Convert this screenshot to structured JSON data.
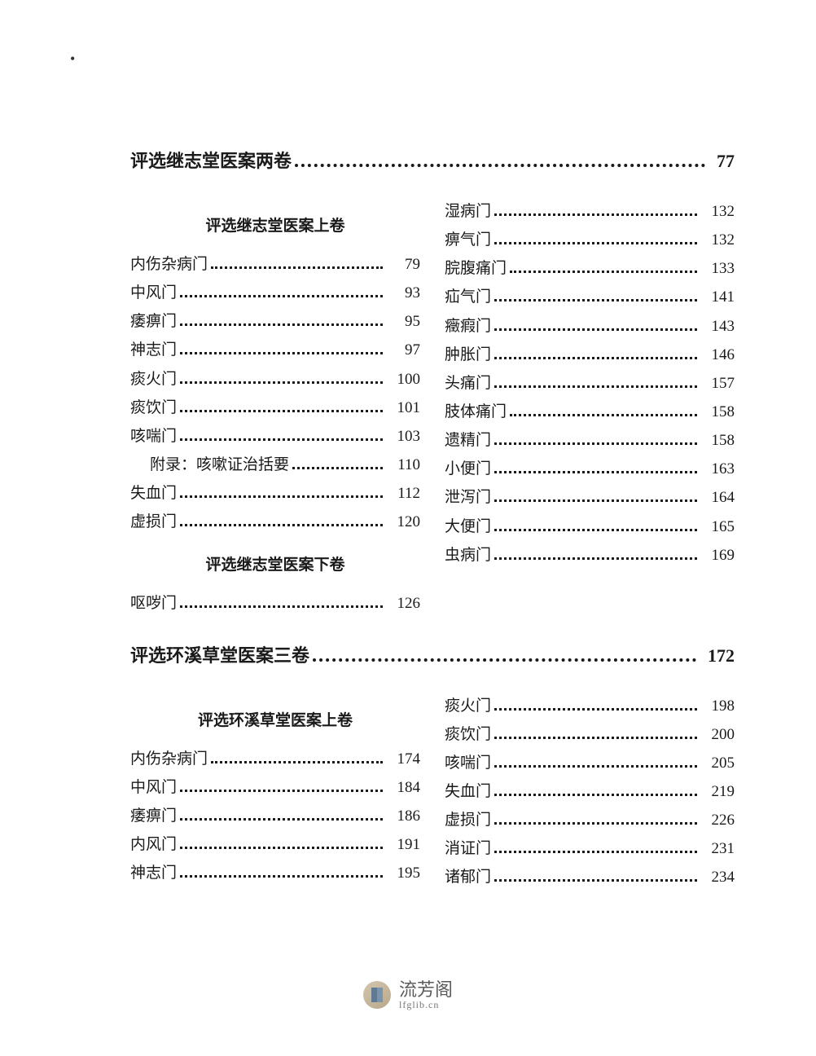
{
  "tick": "•",
  "watermark": {
    "cn": "流芳阁",
    "en": "lfglib.cn"
  },
  "sections": [
    {
      "heading": {
        "title": "评选继志堂医案两卷",
        "page": "77"
      },
      "leftItems": [
        {
          "type": "sub",
          "title": "评选继志堂医案上卷"
        },
        {
          "type": "entry",
          "title": "内伤杂病门",
          "page": "79"
        },
        {
          "type": "entry",
          "title": "中风门",
          "page": "93"
        },
        {
          "type": "entry",
          "title": "痿痹门",
          "page": "95"
        },
        {
          "type": "entry",
          "title": "神志门",
          "page": "97"
        },
        {
          "type": "entry",
          "title": "痰火门",
          "page": "100"
        },
        {
          "type": "entry",
          "title": "痰饮门",
          "page": "101"
        },
        {
          "type": "entry",
          "title": "咳喘门",
          "page": "103"
        },
        {
          "type": "entry",
          "title": "附录：咳嗽证治括要",
          "page": "110",
          "indent": true
        },
        {
          "type": "entry",
          "title": "失血门",
          "page": "112"
        },
        {
          "type": "entry",
          "title": "虚损门",
          "page": "120"
        },
        {
          "type": "sub",
          "title": "评选继志堂医案下卷"
        },
        {
          "type": "entry",
          "title": "呕哕门",
          "page": "126"
        }
      ],
      "rightItems": [
        {
          "type": "entry",
          "title": "湿病门",
          "page": "132"
        },
        {
          "type": "entry",
          "title": "痹气门",
          "page": "132"
        },
        {
          "type": "entry",
          "title": "脘腹痛门",
          "page": "133"
        },
        {
          "type": "entry",
          "title": "疝气门",
          "page": "141"
        },
        {
          "type": "entry",
          "title": "癥瘕门",
          "page": "143"
        },
        {
          "type": "entry",
          "title": "肿胀门",
          "page": "146"
        },
        {
          "type": "entry",
          "title": "头痛门",
          "page": "157"
        },
        {
          "type": "entry",
          "title": "肢体痛门",
          "page": "158"
        },
        {
          "type": "entry",
          "title": "遗精门",
          "page": "158"
        },
        {
          "type": "entry",
          "title": "小便门",
          "page": "163"
        },
        {
          "type": "entry",
          "title": "泄泻门",
          "page": "164"
        },
        {
          "type": "entry",
          "title": "大便门",
          "page": "165"
        },
        {
          "type": "entry",
          "title": "虫病门",
          "page": "169"
        }
      ]
    },
    {
      "heading": {
        "title": "评选环溪草堂医案三卷",
        "page": "172"
      },
      "leftItems": [
        {
          "type": "sub",
          "title": "评选环溪草堂医案上卷"
        },
        {
          "type": "entry",
          "title": "内伤杂病门",
          "page": "174"
        },
        {
          "type": "entry",
          "title": "中风门",
          "page": "184"
        },
        {
          "type": "entry",
          "title": "痿痹门",
          "page": "186"
        },
        {
          "type": "entry",
          "title": "内风门",
          "page": "191"
        },
        {
          "type": "entry",
          "title": "神志门",
          "page": "195"
        }
      ],
      "rightItems": [
        {
          "type": "entry",
          "title": "痰火门",
          "page": "198"
        },
        {
          "type": "entry",
          "title": "痰饮门",
          "page": "200"
        },
        {
          "type": "entry",
          "title": "咳喘门",
          "page": "205"
        },
        {
          "type": "entry",
          "title": "失血门",
          "page": "219"
        },
        {
          "type": "entry",
          "title": "虚损门",
          "page": "226"
        },
        {
          "type": "entry",
          "title": "消证门",
          "page": "231"
        },
        {
          "type": "entry",
          "title": "诸郁门",
          "page": "234"
        }
      ]
    }
  ]
}
